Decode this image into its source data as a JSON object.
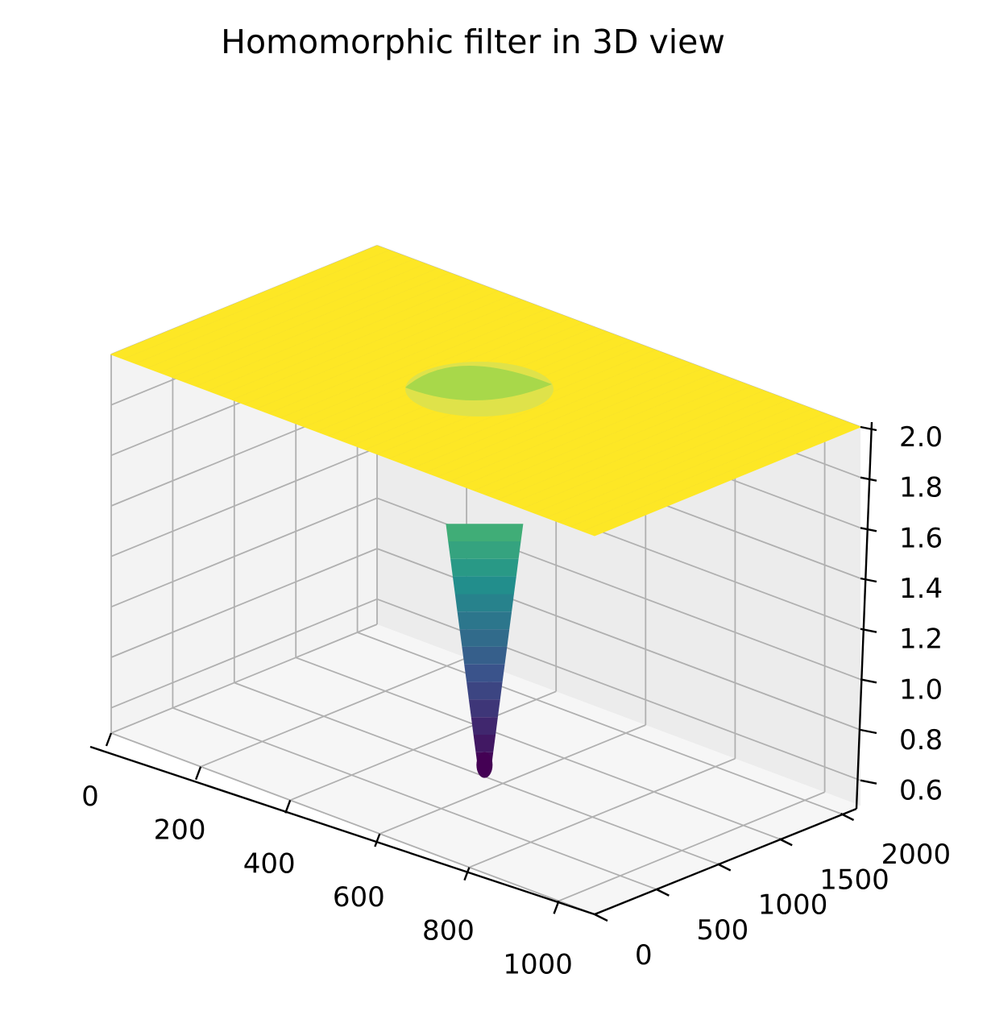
{
  "chart_data": {
    "type": "surface3d",
    "title": "Homomorphic filter in 3D view",
    "colormap": "viridis",
    "colormap_stops": [
      "#440154",
      "#3b528b",
      "#21918c",
      "#5ec962",
      "#fde725"
    ],
    "description": "Flat surface at z = 2.0 with a narrow Gaussian dip at the center reaching ~0.5",
    "x": {
      "ticks": [
        0,
        200,
        400,
        600,
        800,
        1000
      ],
      "tick_labels": [
        "0",
        "200",
        "400",
        "600",
        "800",
        "1000"
      ],
      "lim": [
        0,
        1080
      ]
    },
    "y": {
      "ticks": [
        0,
        500,
        1000,
        1500,
        2000
      ],
      "tick_labels": [
        "0",
        "500",
        "1000",
        "1500",
        "2000"
      ],
      "lim": [
        0,
        2160
      ]
    },
    "z": {
      "ticks": [
        0.6,
        0.8,
        1.0,
        1.2,
        1.4,
        1.6,
        1.8,
        2.0
      ],
      "tick_labels": [
        "0.6",
        "0.8",
        "1.0",
        "1.2",
        "1.4",
        "1.6",
        "1.8",
        "2.0"
      ],
      "lim": [
        0.5,
        2.0
      ]
    },
    "surface": {
      "plateau_z": 2.0,
      "min_z": 0.5,
      "center": [
        540,
        1080
      ]
    },
    "grid": true,
    "pane_colors": {
      "left": "#f3f3f3",
      "right": "#ececec",
      "floor": "#f6f6f6"
    }
  }
}
